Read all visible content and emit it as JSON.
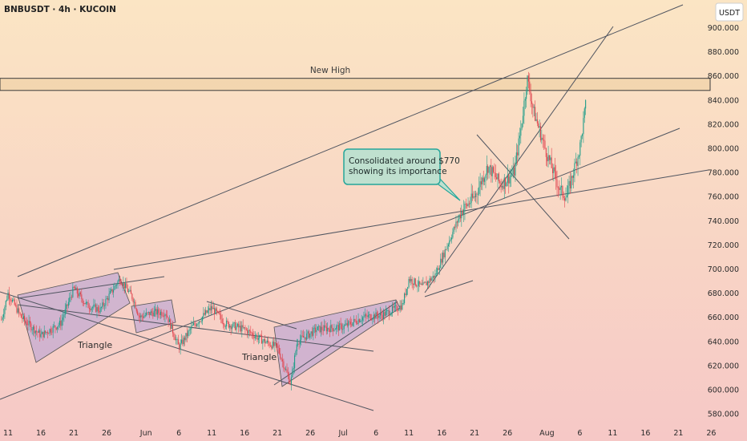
{
  "header": {
    "symbol_line": "BNBUSDT · 4h · KUCOIN"
  },
  "currency_badge": "USDT",
  "colors": {
    "bg_top": "#fbe5c4",
    "bg_bottom": "#f6c8c6",
    "up": "#1f9d89",
    "down": "#e0454f",
    "line": "#505560",
    "pattern_fill": "#b7a2d6",
    "callout_border": "#26a69a",
    "callout_fill": "#bfe0cf"
  },
  "annotations": {
    "new_high": "New High",
    "callout": [
      "Consolidated around $770",
      "showing its importance"
    ],
    "triangle_1": "Triangle",
    "triangle_2": "Triangle"
  },
  "chart_data": {
    "type": "candlestick",
    "title": "BNBUSDT · 4h · KUCOIN",
    "ylabel": "USDT",
    "ylim": [
      570,
      910
    ],
    "y_ticks": [
      580,
      600,
      620,
      640,
      660,
      680,
      700,
      720,
      740,
      760,
      780,
      800,
      820,
      840,
      860,
      880,
      900
    ],
    "x_ticks": [
      "11",
      "16",
      "21",
      "26",
      "Jun",
      "6",
      "11",
      "16",
      "21",
      "26",
      "Jul",
      "6",
      "11",
      "16",
      "21",
      "26",
      "Aug",
      "6",
      "11",
      "16",
      "21",
      "26"
    ],
    "x_range": [
      "May 10",
      "Aug 29"
    ],
    "grid": false,
    "resistance_zone": {
      "low": 848,
      "high": 858,
      "label": "New High"
    },
    "price_path": [
      {
        "date": "May 10",
        "price": 658
      },
      {
        "date": "May 11",
        "price": 680
      },
      {
        "date": "May 13",
        "price": 660
      },
      {
        "date": "May 16",
        "price": 645
      },
      {
        "date": "May 19",
        "price": 655
      },
      {
        "date": "May 21",
        "price": 684
      },
      {
        "date": "May 23",
        "price": 670
      },
      {
        "date": "May 25",
        "price": 666
      },
      {
        "date": "May 28",
        "price": 692
      },
      {
        "date": "May 30",
        "price": 676
      },
      {
        "date": "May 31",
        "price": 660
      },
      {
        "date": "Jun 2",
        "price": 664
      },
      {
        "date": "Jun 4",
        "price": 664
      },
      {
        "date": "Jun 6",
        "price": 635
      },
      {
        "date": "Jun 8",
        "price": 652
      },
      {
        "date": "Jun 11",
        "price": 668
      },
      {
        "date": "Jun 13",
        "price": 655
      },
      {
        "date": "Jun 16",
        "price": 650
      },
      {
        "date": "Jun 19",
        "price": 640
      },
      {
        "date": "Jun 21",
        "price": 635
      },
      {
        "date": "Jun 23",
        "price": 605
      },
      {
        "date": "Jun 24",
        "price": 640
      },
      {
        "date": "Jun 27",
        "price": 650
      },
      {
        "date": "Jul 1",
        "price": 652
      },
      {
        "date": "Jul 4",
        "price": 660
      },
      {
        "date": "Jul 7",
        "price": 662
      },
      {
        "date": "Jul 10",
        "price": 670
      },
      {
        "date": "Jul 11",
        "price": 692
      },
      {
        "date": "Jul 13",
        "price": 685
      },
      {
        "date": "Jul 15",
        "price": 695
      },
      {
        "date": "Jul 17",
        "price": 722
      },
      {
        "date": "Jul 19",
        "price": 748
      },
      {
        "date": "Jul 21",
        "price": 760
      },
      {
        "date": "Jul 23",
        "price": 785
      },
      {
        "date": "Jul 25",
        "price": 770
      },
      {
        "date": "Jul 27",
        "price": 780
      },
      {
        "date": "Jul 28",
        "price": 815
      },
      {
        "date": "Jul 29",
        "price": 858
      },
      {
        "date": "Jul 30",
        "price": 830
      },
      {
        "date": "Aug 1",
        "price": 795
      },
      {
        "date": "Aug 3",
        "price": 765
      },
      {
        "date": "Aug 4",
        "price": 760
      },
      {
        "date": "Aug 6",
        "price": 800
      },
      {
        "date": "Aug 7",
        "price": 840
      }
    ]
  }
}
